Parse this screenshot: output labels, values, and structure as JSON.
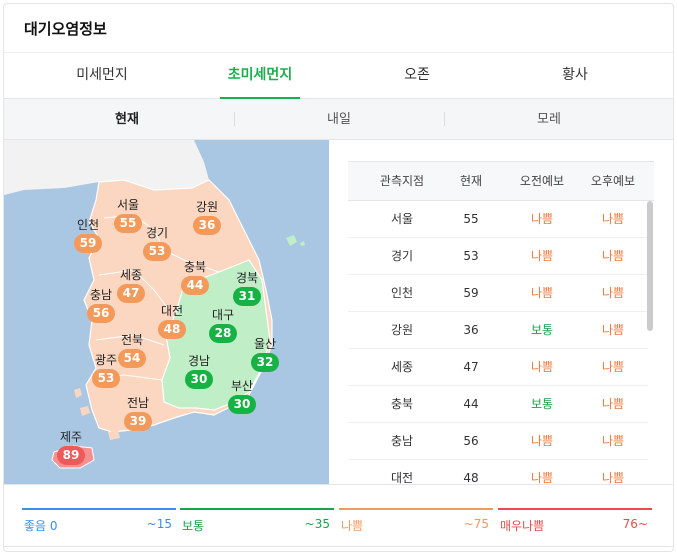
{
  "header": {
    "title": "대기오염정보"
  },
  "tabs": [
    {
      "label": "미세먼지"
    },
    {
      "label": "초미세먼지"
    },
    {
      "label": "오존"
    },
    {
      "label": "황사"
    }
  ],
  "subtabs": [
    {
      "label": "현재"
    },
    {
      "label": "내일"
    },
    {
      "label": "모레"
    }
  ],
  "map": {
    "regions": [
      {
        "name": "서울",
        "value": "55",
        "level": "bad"
      },
      {
        "name": "인천",
        "value": "59",
        "level": "bad"
      },
      {
        "name": "강원",
        "value": "36",
        "level": "bad"
      },
      {
        "name": "경기",
        "value": "53",
        "level": "bad"
      },
      {
        "name": "세종",
        "value": "47",
        "level": "bad"
      },
      {
        "name": "충북",
        "value": "44",
        "level": "bad"
      },
      {
        "name": "경북",
        "value": "31",
        "level": "good"
      },
      {
        "name": "충남",
        "value": "56",
        "level": "bad"
      },
      {
        "name": "대전",
        "value": "48",
        "level": "bad"
      },
      {
        "name": "대구",
        "value": "28",
        "level": "good"
      },
      {
        "name": "전북",
        "value": "54",
        "level": "bad"
      },
      {
        "name": "울산",
        "value": "32",
        "level": "good"
      },
      {
        "name": "광주",
        "value": "53",
        "level": "bad"
      },
      {
        "name": "경남",
        "value": "30",
        "level": "good"
      },
      {
        "name": "부산",
        "value": "30",
        "level": "good"
      },
      {
        "name": "전남",
        "value": "39",
        "level": "bad"
      },
      {
        "name": "제주",
        "value": "89",
        "level": "vbad"
      }
    ]
  },
  "table": {
    "headers": [
      "관측지점",
      "현재",
      "오전예보",
      "오후예보"
    ],
    "rows": [
      {
        "site": "서울",
        "current": "55",
        "am": "나쁨",
        "pm": "나쁨"
      },
      {
        "site": "경기",
        "current": "53",
        "am": "나쁨",
        "pm": "나쁨"
      },
      {
        "site": "인천",
        "current": "59",
        "am": "나쁨",
        "pm": "나쁨"
      },
      {
        "site": "강원",
        "current": "36",
        "am": "보통",
        "pm": "나쁨"
      },
      {
        "site": "세종",
        "current": "47",
        "am": "나쁨",
        "pm": "나쁨"
      },
      {
        "site": "충북",
        "current": "44",
        "am": "보통",
        "pm": "나쁨"
      },
      {
        "site": "충남",
        "current": "56",
        "am": "나쁨",
        "pm": "나쁨"
      },
      {
        "site": "대전",
        "current": "48",
        "am": "나쁨",
        "pm": "나쁨"
      }
    ]
  },
  "legend": [
    {
      "name": "좋음 0",
      "range": "~15",
      "color": "#3a8ee6"
    },
    {
      "name": "보통",
      "range": "~35",
      "color": "#19a34b"
    },
    {
      "name": "나쁨",
      "range": "~75",
      "color": "#f39a5b"
    },
    {
      "name": "매우나쁨",
      "range": "76~",
      "color": "#e74c4c"
    }
  ],
  "colors": {
    "accent": "#19b04b",
    "bad": "#f39a5b",
    "good": "#16b243",
    "very_bad": "#ee5a5a"
  }
}
